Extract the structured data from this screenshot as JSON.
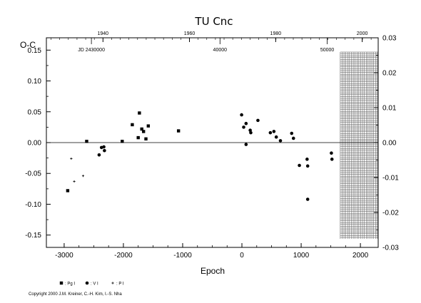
{
  "chart_data": {
    "type": "scatter",
    "title": "TU Cnc",
    "ylabel": "O-C",
    "xlabel": "Epoch",
    "xlim": [
      -3300,
      2300
    ],
    "ylim": [
      -0.17,
      0.17
    ],
    "x_ticks": [
      -3000,
      -2000,
      -1000,
      0,
      1000,
      2000
    ],
    "x_tick_labels": [
      "-3000",
      "-2000",
      "-1000",
      "0",
      "1000",
      "2000"
    ],
    "y_ticks": [
      -0.15,
      -0.1,
      -0.05,
      0,
      0.05,
      0.1,
      0.15
    ],
    "y_tick_labels": [
      "-0.15",
      "-0.10",
      "-0.05",
      "0.00",
      "0.05",
      "0.10",
      "0.15"
    ],
    "right_axis": {
      "lim": [
        -0.03,
        0.03
      ],
      "ticks": [
        -0.03,
        -0.02,
        -0.01,
        0,
        0.01,
        0.02,
        0.03
      ],
      "tick_labels": [
        "-0.03",
        "-0.02",
        "-0.01",
        "0.00",
        "0.01",
        "0.02",
        "0.03"
      ]
    },
    "top_axis": {
      "year_ticks": [
        {
          "epoch": -2345,
          "label": "1940"
        },
        {
          "epoch": -885,
          "label": "1960"
        },
        {
          "epoch": 570,
          "label": "1980"
        },
        {
          "epoch": 2030,
          "label": "2000"
        }
      ],
      "jd_ticks": [
        {
          "epoch": -2540,
          "label": "JD 2430000"
        },
        {
          "epoch": -370,
          "label": "40000"
        },
        {
          "epoch": 1440,
          "label": "50000"
        }
      ]
    },
    "grid": false,
    "zero_line": true,
    "hatched_region": {
      "x_range": [
        1660,
        2300
      ],
      "label": ""
    },
    "legend_position": "bottom-left",
    "series": [
      {
        "name": ": Pg I",
        "marker": "square",
        "points": [
          [
            -2940,
            -0.078
          ],
          [
            -2620,
            0.002
          ],
          [
            -2020,
            0.002
          ],
          [
            -1850,
            0.029
          ],
          [
            -1730,
            0.048
          ],
          [
            -1750,
            0.008
          ],
          [
            -1690,
            0.022
          ],
          [
            -1660,
            0.018
          ],
          [
            -1620,
            0.006
          ],
          [
            -1580,
            0.027
          ],
          [
            -1070,
            0.019
          ]
        ]
      },
      {
        "name": ": V I",
        "marker": "circle",
        "points": [
          [
            -2410,
            -0.02
          ],
          [
            -2370,
            -0.008
          ],
          [
            -2330,
            -0.007
          ],
          [
            -2320,
            -0.013
          ],
          [
            -5,
            0.045
          ],
          [
            30,
            0.025
          ],
          [
            70,
            -0.003
          ],
          [
            70,
            0.031
          ],
          [
            140,
            0.02
          ],
          [
            150,
            0.016
          ],
          [
            270,
            0.036
          ],
          [
            480,
            0.016
          ],
          [
            540,
            0.018
          ],
          [
            580,
            0.009
          ],
          [
            650,
            0.003
          ],
          [
            840,
            0.015
          ],
          [
            870,
            0.007
          ],
          [
            970,
            -0.037
          ],
          [
            1100,
            -0.027
          ],
          [
            1110,
            -0.038
          ],
          [
            1110,
            -0.092
          ],
          [
            1510,
            -0.017
          ],
          [
            1520,
            -0.027
          ]
        ]
      },
      {
        "name": ": P I",
        "marker": "plus",
        "points": [
          [
            -2880,
            -0.026
          ],
          [
            -2830,
            -0.063
          ],
          [
            -2680,
            -0.054
          ]
        ]
      }
    ]
  },
  "copyright": "Copyright 2000 J.M. Kreiner, C.-H. Kim, I.-S. Nha"
}
